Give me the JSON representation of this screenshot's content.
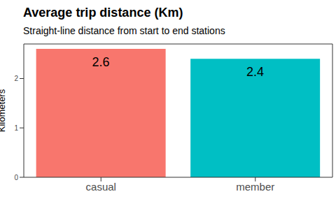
{
  "chart_data": {
    "type": "bar",
    "title": "Average trip distance (Km)",
    "subtitle": "Straight-line distance from start to end stations",
    "y_label": "Kilometers",
    "categories": [
      "casual",
      "member"
    ],
    "values": [
      2.6,
      2.4
    ],
    "colors": [
      "#F8766D",
      "#00BFC4"
    ],
    "ylim": [
      0,
      2.7
    ],
    "yticks": [
      0,
      1,
      2
    ],
    "grid": false,
    "data_labels": true
  }
}
